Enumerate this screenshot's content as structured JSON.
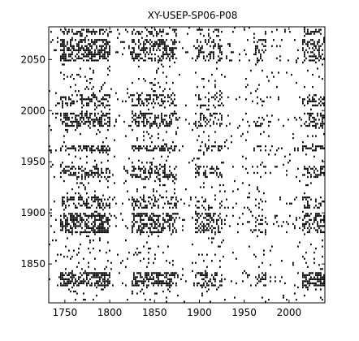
{
  "chart_data": {
    "type": "heatmap",
    "title": "XY-USEP-SP06-P08",
    "xlabel": "",
    "ylabel": "",
    "xlim": [
      1732,
      2040
    ],
    "ylim": [
      1812,
      2082
    ],
    "x_ticks": [
      1750,
      1800,
      1850,
      1900,
      1950,
      2000
    ],
    "y_ticks": [
      1850,
      1900,
      1950,
      2000,
      2050
    ],
    "x_tick_labels": [
      "1750",
      "1800",
      "1850",
      "1900",
      "1950",
      "2000"
    ],
    "y_tick_labels": [
      "1850",
      "1900",
      "1950",
      "2000",
      "2050"
    ],
    "grid": false,
    "colors": {
      "foreground": "#000000",
      "background": "#ffffff"
    },
    "description_of_pattern": "binary recurrence-style dot matrix; dense bands near y=1830-1840, 1880-1900, 1935-1945, 1985-1995, 2050-2070 and x=1745-1800, 1825-1875, 1900-1925, 2015-2040"
  }
}
